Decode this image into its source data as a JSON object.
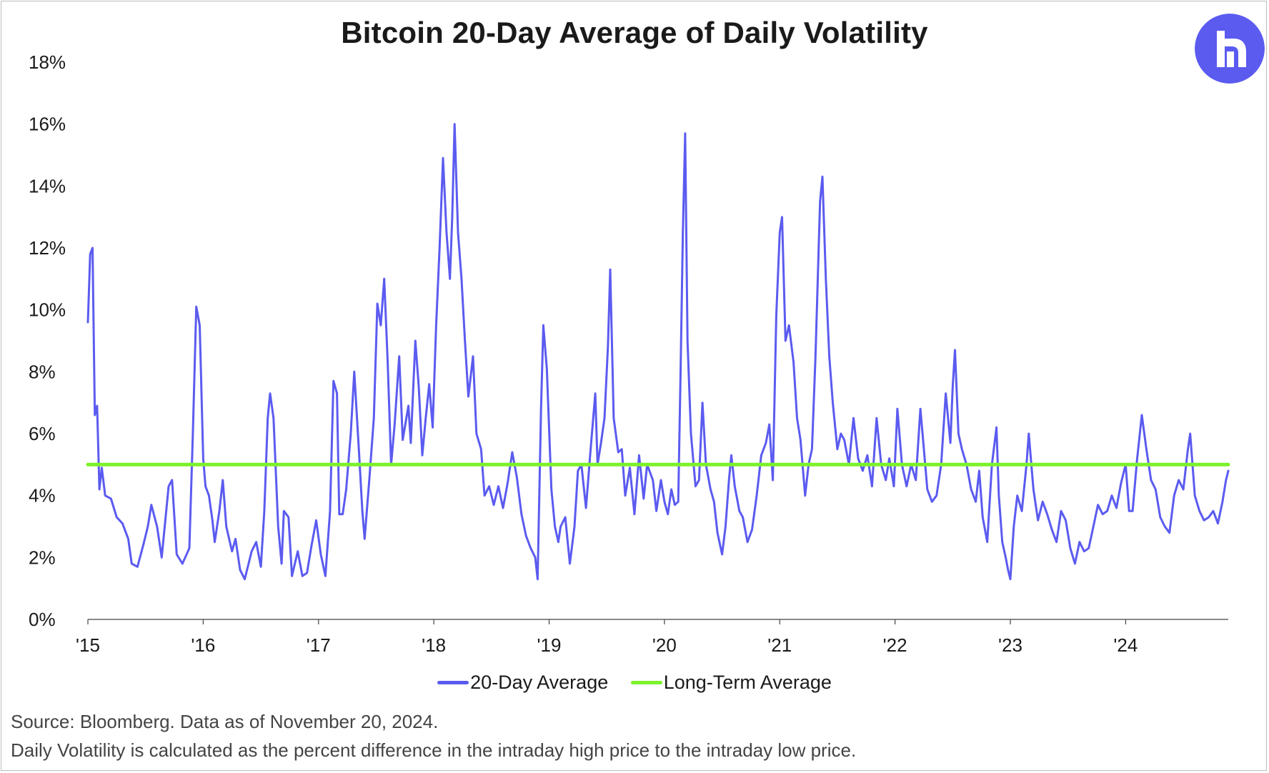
{
  "title": "Bitcoin 20-Day Average of Daily Volatility",
  "footer": {
    "source": "Source: Bloomberg. Data as of November 20, 2024.",
    "note": "Daily Volatility is calculated as the percent difference in the intraday high price to the intraday low price."
  },
  "logo": {
    "icon": "robinhood-r-logo-icon",
    "color": "#5b5bf0"
  },
  "legend": [
    {
      "label": "20-Day Average",
      "color": "#5b5bf0"
    },
    {
      "label": "Long-Term Average",
      "color": "#7cf22a"
    }
  ],
  "chart_data": {
    "type": "line",
    "title": "Bitcoin 20-Day Average of Daily Volatility",
    "xlabel": "",
    "ylabel": "",
    "xlim": [
      2015.0,
      2024.89
    ],
    "ylim": [
      0,
      18
    ],
    "y_ticks": [
      "0%",
      "2%",
      "4%",
      "6%",
      "8%",
      "10%",
      "12%",
      "14%",
      "16%",
      "18%"
    ],
    "x_tick_labels": [
      "'15",
      "'16",
      "'17",
      "'18",
      "'19",
      "'20",
      "'21",
      "'22",
      "'23",
      "'24"
    ],
    "x_tick_years": [
      2015,
      2016,
      2017,
      2018,
      2019,
      2020,
      2021,
      2022,
      2023,
      2024
    ],
    "grid": false,
    "legend_position": "bottom-center",
    "series": [
      {
        "name": "20-Day Average",
        "color": "#5b5bf0",
        "points": [
          [
            2015.0,
            9.6
          ],
          [
            2015.02,
            11.8
          ],
          [
            2015.04,
            12.0
          ],
          [
            2015.06,
            6.6
          ],
          [
            2015.08,
            6.9
          ],
          [
            2015.1,
            4.2
          ],
          [
            2015.12,
            4.9
          ],
          [
            2015.15,
            4.0
          ],
          [
            2015.2,
            3.9
          ],
          [
            2015.25,
            3.3
          ],
          [
            2015.3,
            3.1
          ],
          [
            2015.35,
            2.6
          ],
          [
            2015.38,
            1.8
          ],
          [
            2015.43,
            1.7
          ],
          [
            2015.48,
            2.4
          ],
          [
            2015.52,
            3.0
          ],
          [
            2015.55,
            3.7
          ],
          [
            2015.6,
            3.0
          ],
          [
            2015.64,
            2.0
          ],
          [
            2015.7,
            4.3
          ],
          [
            2015.73,
            4.5
          ],
          [
            2015.77,
            2.1
          ],
          [
            2015.82,
            1.8
          ],
          [
            2015.88,
            2.3
          ],
          [
            2015.91,
            6.0
          ],
          [
            2015.94,
            10.1
          ],
          [
            2015.97,
            9.5
          ],
          [
            2016.0,
            5.2
          ],
          [
            2016.02,
            4.3
          ],
          [
            2016.05,
            4.0
          ],
          [
            2016.08,
            3.2
          ],
          [
            2016.1,
            2.5
          ],
          [
            2016.14,
            3.5
          ],
          [
            2016.17,
            4.5
          ],
          [
            2016.2,
            3.0
          ],
          [
            2016.25,
            2.2
          ],
          [
            2016.28,
            2.6
          ],
          [
            2016.32,
            1.6
          ],
          [
            2016.36,
            1.3
          ],
          [
            2016.42,
            2.2
          ],
          [
            2016.46,
            2.5
          ],
          [
            2016.5,
            1.7
          ],
          [
            2016.53,
            3.5
          ],
          [
            2016.56,
            6.5
          ],
          [
            2016.58,
            7.3
          ],
          [
            2016.61,
            6.5
          ],
          [
            2016.65,
            3.0
          ],
          [
            2016.68,
            1.8
          ],
          [
            2016.7,
            3.5
          ],
          [
            2016.74,
            3.3
          ],
          [
            2016.77,
            1.4
          ],
          [
            2016.82,
            2.2
          ],
          [
            2016.86,
            1.4
          ],
          [
            2016.9,
            1.5
          ],
          [
            2016.94,
            2.4
          ],
          [
            2016.98,
            3.2
          ],
          [
            2017.02,
            2.1
          ],
          [
            2017.06,
            1.4
          ],
          [
            2017.1,
            3.5
          ],
          [
            2017.13,
            7.7
          ],
          [
            2017.16,
            7.3
          ],
          [
            2017.18,
            3.4
          ],
          [
            2017.21,
            3.4
          ],
          [
            2017.24,
            4.2
          ],
          [
            2017.28,
            6.0
          ],
          [
            2017.31,
            8.0
          ],
          [
            2017.35,
            5.5
          ],
          [
            2017.38,
            3.5
          ],
          [
            2017.4,
            2.6
          ],
          [
            2017.44,
            4.5
          ],
          [
            2017.48,
            6.5
          ],
          [
            2017.51,
            10.2
          ],
          [
            2017.54,
            9.5
          ],
          [
            2017.57,
            11.0
          ],
          [
            2017.6,
            8.3
          ],
          [
            2017.63,
            5.0
          ],
          [
            2017.66,
            6.3
          ],
          [
            2017.7,
            8.5
          ],
          [
            2017.73,
            5.8
          ],
          [
            2017.78,
            6.9
          ],
          [
            2017.8,
            5.7
          ],
          [
            2017.84,
            9.0
          ],
          [
            2017.87,
            7.5
          ],
          [
            2017.9,
            5.3
          ],
          [
            2017.93,
            6.5
          ],
          [
            2017.96,
            7.6
          ],
          [
            2017.99,
            6.2
          ],
          [
            2018.02,
            9.5
          ],
          [
            2018.05,
            12.0
          ],
          [
            2018.08,
            14.9
          ],
          [
            2018.11,
            12.5
          ],
          [
            2018.14,
            11.0
          ],
          [
            2018.16,
            13.0
          ],
          [
            2018.18,
            16.0
          ],
          [
            2018.21,
            12.5
          ],
          [
            2018.24,
            11.0
          ],
          [
            2018.27,
            9.0
          ],
          [
            2018.3,
            7.2
          ],
          [
            2018.34,
            8.5
          ],
          [
            2018.37,
            6.0
          ],
          [
            2018.41,
            5.5
          ],
          [
            2018.44,
            4.0
          ],
          [
            2018.48,
            4.3
          ],
          [
            2018.52,
            3.7
          ],
          [
            2018.56,
            4.3
          ],
          [
            2018.6,
            3.6
          ],
          [
            2018.64,
            4.4
          ],
          [
            2018.68,
            5.4
          ],
          [
            2018.72,
            4.6
          ],
          [
            2018.76,
            3.4
          ],
          [
            2018.8,
            2.7
          ],
          [
            2018.84,
            2.3
          ],
          [
            2018.88,
            2.0
          ],
          [
            2018.9,
            1.3
          ],
          [
            2018.93,
            6.8
          ],
          [
            2018.95,
            9.5
          ],
          [
            2018.98,
            8.1
          ],
          [
            2019.02,
            4.2
          ],
          [
            2019.05,
            3.0
          ],
          [
            2019.08,
            2.5
          ],
          [
            2019.1,
            3.0
          ],
          [
            2019.14,
            3.3
          ],
          [
            2019.18,
            1.8
          ],
          [
            2019.22,
            3.0
          ],
          [
            2019.25,
            4.8
          ],
          [
            2019.28,
            5.0
          ],
          [
            2019.32,
            3.6
          ],
          [
            2019.36,
            5.5
          ],
          [
            2019.4,
            7.3
          ],
          [
            2019.42,
            5.0
          ],
          [
            2019.45,
            5.7
          ],
          [
            2019.48,
            6.5
          ],
          [
            2019.51,
            8.8
          ],
          [
            2019.53,
            11.3
          ],
          [
            2019.56,
            6.5
          ],
          [
            2019.6,
            5.4
          ],
          [
            2019.63,
            5.5
          ],
          [
            2019.66,
            4.0
          ],
          [
            2019.7,
            4.9
          ],
          [
            2019.74,
            3.4
          ],
          [
            2019.78,
            5.3
          ],
          [
            2019.82,
            3.9
          ],
          [
            2019.85,
            5.0
          ],
          [
            2019.9,
            4.5
          ],
          [
            2019.93,
            3.5
          ],
          [
            2019.97,
            4.5
          ],
          [
            2020.0,
            3.8
          ],
          [
            2020.03,
            3.4
          ],
          [
            2020.06,
            4.2
          ],
          [
            2020.09,
            3.7
          ],
          [
            2020.12,
            3.8
          ],
          [
            2020.14,
            8.0
          ],
          [
            2020.16,
            12.5
          ],
          [
            2020.18,
            15.7
          ],
          [
            2020.2,
            9.0
          ],
          [
            2020.23,
            6.0
          ],
          [
            2020.27,
            4.3
          ],
          [
            2020.3,
            4.5
          ],
          [
            2020.33,
            7.0
          ],
          [
            2020.36,
            5.0
          ],
          [
            2020.4,
            4.2
          ],
          [
            2020.43,
            3.8
          ],
          [
            2020.46,
            2.8
          ],
          [
            2020.5,
            2.1
          ],
          [
            2020.53,
            3.0
          ],
          [
            2020.56,
            4.5
          ],
          [
            2020.58,
            5.3
          ],
          [
            2020.61,
            4.3
          ],
          [
            2020.65,
            3.5
          ],
          [
            2020.68,
            3.3
          ],
          [
            2020.72,
            2.5
          ],
          [
            2020.76,
            2.9
          ],
          [
            2020.8,
            4.0
          ],
          [
            2020.84,
            5.3
          ],
          [
            2020.88,
            5.7
          ],
          [
            2020.91,
            6.3
          ],
          [
            2020.94,
            4.5
          ],
          [
            2020.97,
            9.8
          ],
          [
            2021.0,
            12.5
          ],
          [
            2021.02,
            13.0
          ],
          [
            2021.05,
            9.0
          ],
          [
            2021.08,
            9.5
          ],
          [
            2021.12,
            8.3
          ],
          [
            2021.15,
            6.5
          ],
          [
            2021.18,
            5.8
          ],
          [
            2021.22,
            4.0
          ],
          [
            2021.25,
            5.0
          ],
          [
            2021.28,
            5.5
          ],
          [
            2021.31,
            8.5
          ],
          [
            2021.35,
            13.5
          ],
          [
            2021.37,
            14.3
          ],
          [
            2021.4,
            11.0
          ],
          [
            2021.43,
            8.5
          ],
          [
            2021.46,
            7.0
          ],
          [
            2021.5,
            5.5
          ],
          [
            2021.53,
            6.0
          ],
          [
            2021.56,
            5.8
          ],
          [
            2021.6,
            5.0
          ],
          [
            2021.64,
            6.5
          ],
          [
            2021.68,
            5.2
          ],
          [
            2021.72,
            4.8
          ],
          [
            2021.76,
            5.3
          ],
          [
            2021.8,
            4.3
          ],
          [
            2021.84,
            6.5
          ],
          [
            2021.88,
            5.0
          ],
          [
            2021.92,
            4.5
          ],
          [
            2021.95,
            5.2
          ],
          [
            2021.99,
            4.3
          ],
          [
            2022.02,
            6.8
          ],
          [
            2022.06,
            5.0
          ],
          [
            2022.1,
            4.3
          ],
          [
            2022.14,
            5.0
          ],
          [
            2022.18,
            4.5
          ],
          [
            2022.22,
            6.8
          ],
          [
            2022.25,
            5.5
          ],
          [
            2022.28,
            4.2
          ],
          [
            2022.32,
            3.8
          ],
          [
            2022.36,
            4.0
          ],
          [
            2022.4,
            5.0
          ],
          [
            2022.44,
            7.3
          ],
          [
            2022.48,
            5.7
          ],
          [
            2022.5,
            7.5
          ],
          [
            2022.52,
            8.7
          ],
          [
            2022.55,
            6.0
          ],
          [
            2022.58,
            5.5
          ],
          [
            2022.62,
            5.0
          ],
          [
            2022.66,
            4.2
          ],
          [
            2022.7,
            3.8
          ],
          [
            2022.73,
            4.8
          ],
          [
            2022.76,
            3.3
          ],
          [
            2022.8,
            2.5
          ],
          [
            2022.84,
            5.0
          ],
          [
            2022.88,
            6.2
          ],
          [
            2022.9,
            4.0
          ],
          [
            2022.93,
            2.5
          ],
          [
            2022.96,
            2.0
          ],
          [
            2022.98,
            1.6
          ],
          [
            2023.0,
            1.3
          ],
          [
            2023.03,
            3.0
          ],
          [
            2023.06,
            4.0
          ],
          [
            2023.1,
            3.5
          ],
          [
            2023.14,
            5.0
          ],
          [
            2023.16,
            6.0
          ],
          [
            2023.2,
            4.2
          ],
          [
            2023.24,
            3.2
          ],
          [
            2023.28,
            3.8
          ],
          [
            2023.32,
            3.4
          ],
          [
            2023.36,
            2.9
          ],
          [
            2023.4,
            2.5
          ],
          [
            2023.44,
            3.5
          ],
          [
            2023.48,
            3.2
          ],
          [
            2023.52,
            2.3
          ],
          [
            2023.56,
            1.8
          ],
          [
            2023.6,
            2.5
          ],
          [
            2023.64,
            2.2
          ],
          [
            2023.68,
            2.3
          ],
          [
            2023.72,
            3.0
          ],
          [
            2023.76,
            3.7
          ],
          [
            2023.8,
            3.4
          ],
          [
            2023.84,
            3.5
          ],
          [
            2023.88,
            4.0
          ],
          [
            2023.92,
            3.6
          ],
          [
            2023.96,
            4.4
          ],
          [
            2024.0,
            5.0
          ],
          [
            2024.03,
            3.5
          ],
          [
            2024.06,
            3.5
          ],
          [
            2024.1,
            5.2
          ],
          [
            2024.14,
            6.6
          ],
          [
            2024.18,
            5.5
          ],
          [
            2024.22,
            4.5
          ],
          [
            2024.26,
            4.2
          ],
          [
            2024.3,
            3.3
          ],
          [
            2024.34,
            3.0
          ],
          [
            2024.38,
            2.8
          ],
          [
            2024.42,
            4.0
          ],
          [
            2024.46,
            4.5
          ],
          [
            2024.5,
            4.2
          ],
          [
            2024.54,
            5.5
          ],
          [
            2024.56,
            6.0
          ],
          [
            2024.6,
            4.0
          ],
          [
            2024.64,
            3.5
          ],
          [
            2024.68,
            3.2
          ],
          [
            2024.72,
            3.3
          ],
          [
            2024.76,
            3.5
          ],
          [
            2024.8,
            3.1
          ],
          [
            2024.84,
            3.8
          ],
          [
            2024.87,
            4.5
          ],
          [
            2024.89,
            4.8
          ]
        ]
      },
      {
        "name": "Long-Term Average",
        "color": "#7cf22a",
        "points": [
          [
            2015.0,
            5.0
          ],
          [
            2024.89,
            5.0
          ]
        ]
      }
    ]
  }
}
